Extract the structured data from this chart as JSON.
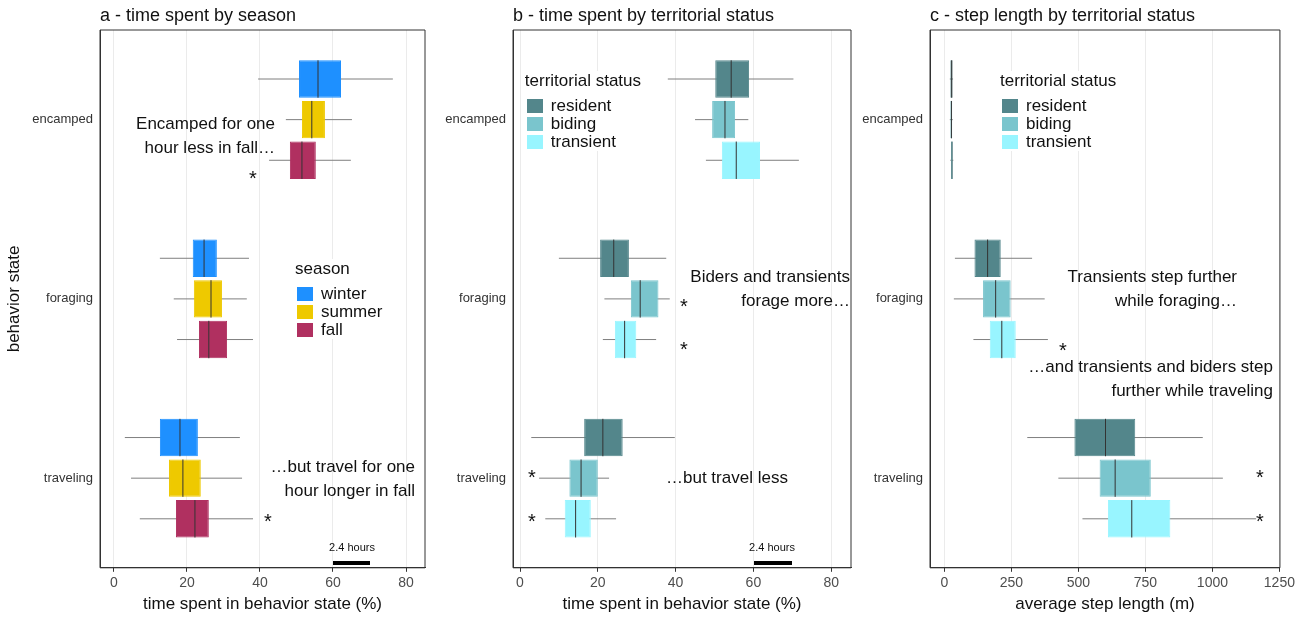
{
  "chart_data": [
    {
      "type": "box",
      "title": "a - time spent by season",
      "xlabel": "time spent in behavior state (%)",
      "ylabel": "behavior state",
      "orientation": "horizontal",
      "categories": [
        "encamped",
        "foraging",
        "traveling"
      ],
      "series": [
        {
          "name": "winter",
          "color": "#1e90ff",
          "boxes": [
            {
              "low": 39.5,
              "q1": 50.7,
              "median": 55.9,
              "q3": 62.2,
              "high": 76.4
            },
            {
              "low": 12.6,
              "q1": 21.6,
              "median": 24.7,
              "q3": 28.2,
              "high": 37.0
            },
            {
              "low": 3.0,
              "q1": 12.6,
              "median": 18.1,
              "q3": 23.0,
              "high": 34.5
            }
          ]
        },
        {
          "name": "summer",
          "color": "#eec900",
          "boxes": [
            {
              "low": 47.1,
              "q1": 51.5,
              "median": 54.2,
              "q3": 57.8,
              "high": 65.2
            },
            {
              "low": 16.4,
              "q1": 21.9,
              "median": 26.6,
              "q3": 29.6,
              "high": 36.4
            },
            {
              "low": 4.7,
              "q1": 15.1,
              "median": 18.9,
              "q3": 23.8,
              "high": 35.1
            }
          ]
        },
        {
          "name": "fall",
          "color": "#b03060",
          "boxes": [
            {
              "low": 42.5,
              "q1": 48.2,
              "median": 51.5,
              "q3": 55.3,
              "high": 64.9
            },
            {
              "low": 17.3,
              "q1": 23.3,
              "median": 26.0,
              "q3": 31.0,
              "high": 38.1
            },
            {
              "low": 7.1,
              "q1": 17.0,
              "median": 22.2,
              "q3": 26.0,
              "high": 38.1
            }
          ]
        }
      ],
      "xlim": [
        -3.8,
        85.2
      ],
      "xticks": [
        0,
        20,
        40,
        60,
        80
      ],
      "grid": "x",
      "legend": "right",
      "legend_title": "season",
      "annotations": [
        "Encamped for one hour less in fall…",
        "*",
        "…but travel for one hour longer in fall",
        "*",
        "2.4 hours"
      ]
    },
    {
      "type": "box",
      "title": "b - time spent by territorial status",
      "xlabel": "time spent in behavior state (%)",
      "orientation": "horizontal",
      "categories": [
        "encamped",
        "foraging",
        "traveling"
      ],
      "series": [
        {
          "name": "resident",
          "color": "#53868b",
          "boxes": [
            {
              "low": 38.0,
              "q1": 50.2,
              "median": 54.3,
              "q3": 58.9,
              "high": 70.3
            },
            {
              "low": 10.0,
              "q1": 20.6,
              "median": 24.1,
              "q3": 28.0,
              "high": 37.6
            },
            {
              "low": 2.9,
              "q1": 16.5,
              "median": 21.3,
              "q3": 26.4,
              "high": 39.8
            }
          ]
        },
        {
          "name": "biding",
          "color": "#7ac5cd",
          "boxes": [
            {
              "low": 45.0,
              "q1": 49.4,
              "median": 52.7,
              "q3": 55.3,
              "high": 58.7
            },
            {
              "low": 21.7,
              "q1": 28.5,
              "median": 30.9,
              "q3": 35.6,
              "high": 38.5
            },
            {
              "low": 4.9,
              "q1": 12.7,
              "median": 15.7,
              "q3": 20.0,
              "high": 22.9
            }
          ]
        },
        {
          "name": "transient",
          "color": "#98f5ff",
          "boxes": [
            {
              "low": 47.8,
              "q1": 51.9,
              "median": 55.6,
              "q3": 61.7,
              "high": 71.7
            },
            {
              "low": 21.3,
              "q1": 24.4,
              "median": 26.9,
              "q3": 29.9,
              "high": 35.0
            },
            {
              "low": 6.5,
              "q1": 11.5,
              "median": 14.3,
              "q3": 18.2,
              "high": 24.7
            }
          ]
        }
      ],
      "xlim": [
        -1.8,
        85.1
      ],
      "xticks": [
        0,
        20,
        40,
        60,
        80
      ],
      "grid": "x",
      "legend": "top left",
      "legend_title": "territorial status",
      "annotations": [
        "Biders and transients forage more…",
        "*",
        "*",
        "…but travel less",
        "*",
        "*",
        "2.4 hours"
      ]
    },
    {
      "type": "box",
      "title": "c - step length by territorial status",
      "xlabel": "average step length (m)",
      "orientation": "horizontal",
      "categories": [
        "encamped",
        "foraging",
        "traveling"
      ],
      "series": [
        {
          "name": "resident",
          "color": "#53868b",
          "boxes": [
            {
              "low": 20,
              "q1": 22,
              "median": 27,
              "q3": 30,
              "high": 32
            },
            {
              "low": 39,
              "q1": 112,
              "median": 161,
              "q3": 210,
              "high": 327
            },
            {
              "low": 309,
              "q1": 485,
              "median": 601,
              "q3": 712,
              "high": 964
            }
          ]
        },
        {
          "name": "biding",
          "color": "#7ac5cd",
          "boxes": [
            {
              "low": 20,
              "q1": 22,
              "median": 26,
              "q3": 29,
              "high": 31
            },
            {
              "low": 35,
              "q1": 144,
              "median": 191,
              "q3": 247,
              "high": 374
            },
            {
              "low": 425,
              "q1": 579,
              "median": 637,
              "q3": 770,
              "high": 1039
            }
          ]
        },
        {
          "name": "transient",
          "color": "#98f5ff",
          "boxes": [
            {
              "low": 22,
              "q1": 24,
              "median": 28,
              "q3": 31,
              "high": 33
            },
            {
              "low": 108,
              "q1": 169,
              "median": 214,
              "q3": 266,
              "high": 386
            },
            {
              "low": 515,
              "q1": 610,
              "median": 699,
              "q3": 843,
              "high": 1163
            }
          ]
        }
      ],
      "xlim": [
        -54,
        1252
      ],
      "xticks": [
        0,
        250,
        500,
        750,
        1000,
        1250
      ],
      "grid": "x",
      "legend": "top",
      "legend_title": "territorial status",
      "annotations": [
        "Transients step further while foraging…",
        "*",
        "…and transients and biders step further while traveling",
        "*",
        "*"
      ]
    }
  ]
}
